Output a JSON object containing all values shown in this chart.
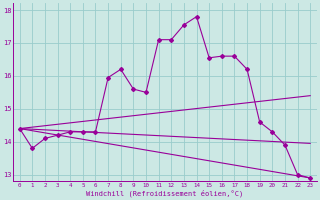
{
  "xlabel": "Windchill (Refroidissement éolien,°C)",
  "xlim": [
    -0.5,
    23.5
  ],
  "ylim": [
    12.8,
    18.2
  ],
  "yticks": [
    13,
    14,
    15,
    16,
    17,
    18
  ],
  "xticks": [
    0,
    1,
    2,
    3,
    4,
    5,
    6,
    7,
    8,
    9,
    10,
    11,
    12,
    13,
    14,
    15,
    16,
    17,
    18,
    19,
    20,
    21,
    22,
    23
  ],
  "bg_color": "#cce8e4",
  "grid_color": "#99cccc",
  "line_color": "#990099",
  "lines": [
    {
      "x": [
        0,
        1,
        2,
        3,
        4,
        5,
        6,
        7,
        8,
        9,
        10,
        11,
        12,
        13,
        14,
        15,
        16,
        17,
        18,
        19,
        20,
        21,
        22,
        23
      ],
      "y": [
        14.4,
        13.8,
        14.1,
        14.2,
        14.3,
        14.3,
        14.3,
        15.95,
        16.2,
        15.6,
        15.5,
        17.1,
        17.1,
        17.55,
        17.8,
        16.55,
        16.6,
        16.6,
        16.2,
        14.6,
        14.3,
        13.9,
        13.0,
        12.9
      ],
      "marker": "D",
      "markersize": 2.0
    },
    {
      "x": [
        0,
        23
      ],
      "y": [
        14.4,
        15.4
      ],
      "marker": null,
      "markersize": 0
    },
    {
      "x": [
        0,
        23
      ],
      "y": [
        14.4,
        13.95
      ],
      "marker": null,
      "markersize": 0
    },
    {
      "x": [
        0,
        23
      ],
      "y": [
        14.4,
        12.9
      ],
      "marker": null,
      "markersize": 0
    }
  ]
}
